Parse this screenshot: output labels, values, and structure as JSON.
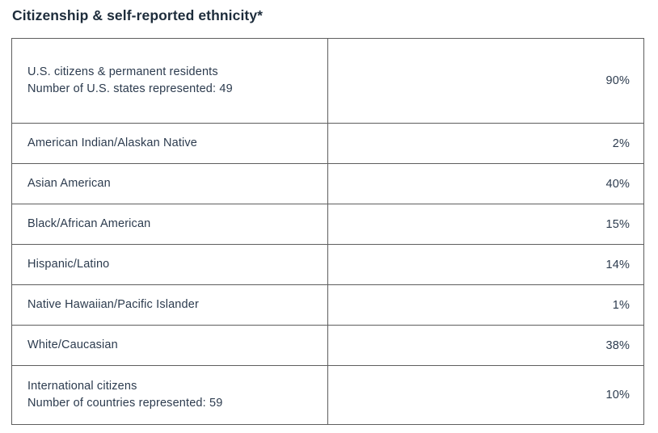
{
  "title": "Citizenship & self-reported ethnicity*",
  "colors": {
    "text": "#2c3b4e",
    "title_text": "#1d2c3b",
    "border": "#5e5e5e",
    "background": "#ffffff"
  },
  "table": {
    "rows": [
      {
        "label": "U.S. citizens & permanent residents",
        "sublabel": "Number of U.S. states represented: 49",
        "value": "90%"
      },
      {
        "label": "American Indian/Alaskan Native",
        "value": "2%"
      },
      {
        "label": "Asian American",
        "value": "40%"
      },
      {
        "label": "Black/African American",
        "value": "15%"
      },
      {
        "label": "Hispanic/Latino",
        "value": "14%"
      },
      {
        "label": "Native Hawaiian/Pacific Islander",
        "value": "1%"
      },
      {
        "label": "White/Caucasian",
        "value": "38%"
      },
      {
        "label": "International citizens",
        "sublabel": "Number of countries represented: 59",
        "value": "10%"
      }
    ]
  },
  "chart_data": {
    "type": "table",
    "title": "Citizenship & self-reported ethnicity*",
    "categories": [
      "U.S. citizens & permanent residents",
      "American Indian/Alaskan Native",
      "Asian American",
      "Black/African American",
      "Hispanic/Latino",
      "Native Hawaiian/Pacific Islander",
      "White/Caucasian",
      "International citizens"
    ],
    "values": [
      90,
      2,
      40,
      15,
      14,
      1,
      38,
      10
    ],
    "unit": "%",
    "annotations": [
      "Number of U.S. states represented: 49",
      "Number of countries represented: 59"
    ]
  }
}
